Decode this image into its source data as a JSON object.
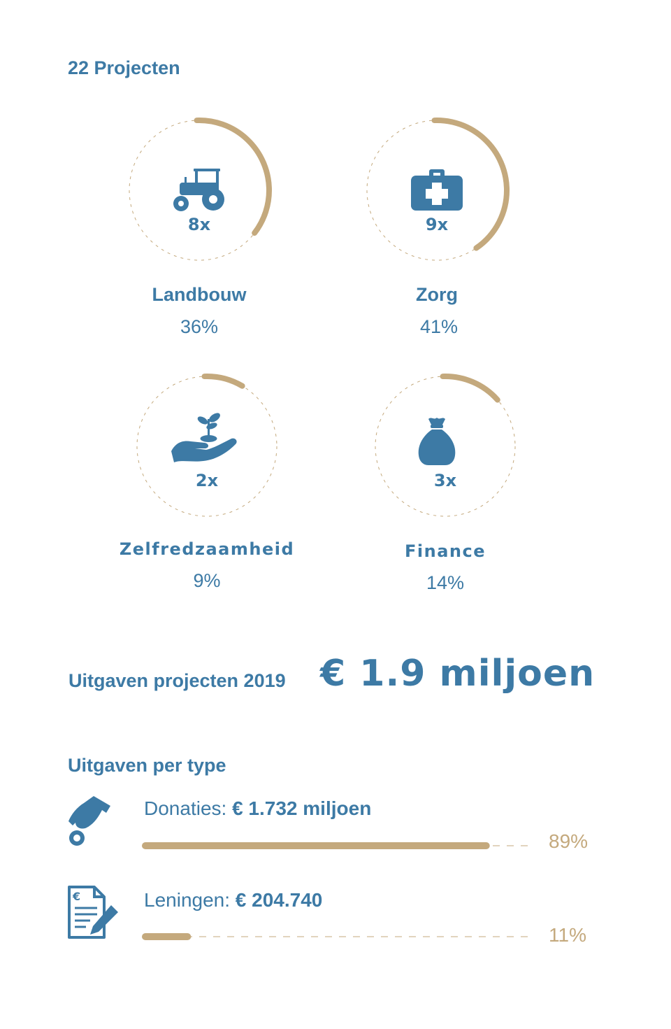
{
  "title": "22 Projecten",
  "colors": {
    "blue": "#3d7aa5",
    "gold": "#c4a97d"
  },
  "chart_data": [
    {
      "type": "pie",
      "categories": [
        {
          "label": "Landbouw",
          "count_label": "8x",
          "percent_label": "36%",
          "value": 36,
          "icon": "tractor-icon"
        },
        {
          "label": "Zorg",
          "count_label": "9x",
          "percent_label": "41%",
          "value": 41,
          "icon": "first-aid-kit-icon"
        },
        {
          "label": "Zelfredzaamheid",
          "count_label": "2x",
          "percent_label": "9%",
          "value": 9,
          "icon": "hand-with-plant-icon"
        },
        {
          "label": "Finance",
          "count_label": "3x",
          "percent_label": "14%",
          "value": 14,
          "icon": "money-bag-icon"
        }
      ]
    },
    {
      "type": "bar",
      "title": "Uitgaven per type",
      "bars": [
        {
          "label": "Donaties:",
          "amount": "€ 1.732 miljoen",
          "percent_label": "89%",
          "value": 89,
          "icon": "hand-coin-icon"
        },
        {
          "label": "Leningen:",
          "amount": "€ 204.740",
          "percent_label": "11%",
          "value": 11,
          "icon": "loan-document-icon"
        }
      ]
    }
  ],
  "spending": {
    "label": "Uitgaven projecten 2019",
    "amount": "€ 1.9 miljoen"
  }
}
